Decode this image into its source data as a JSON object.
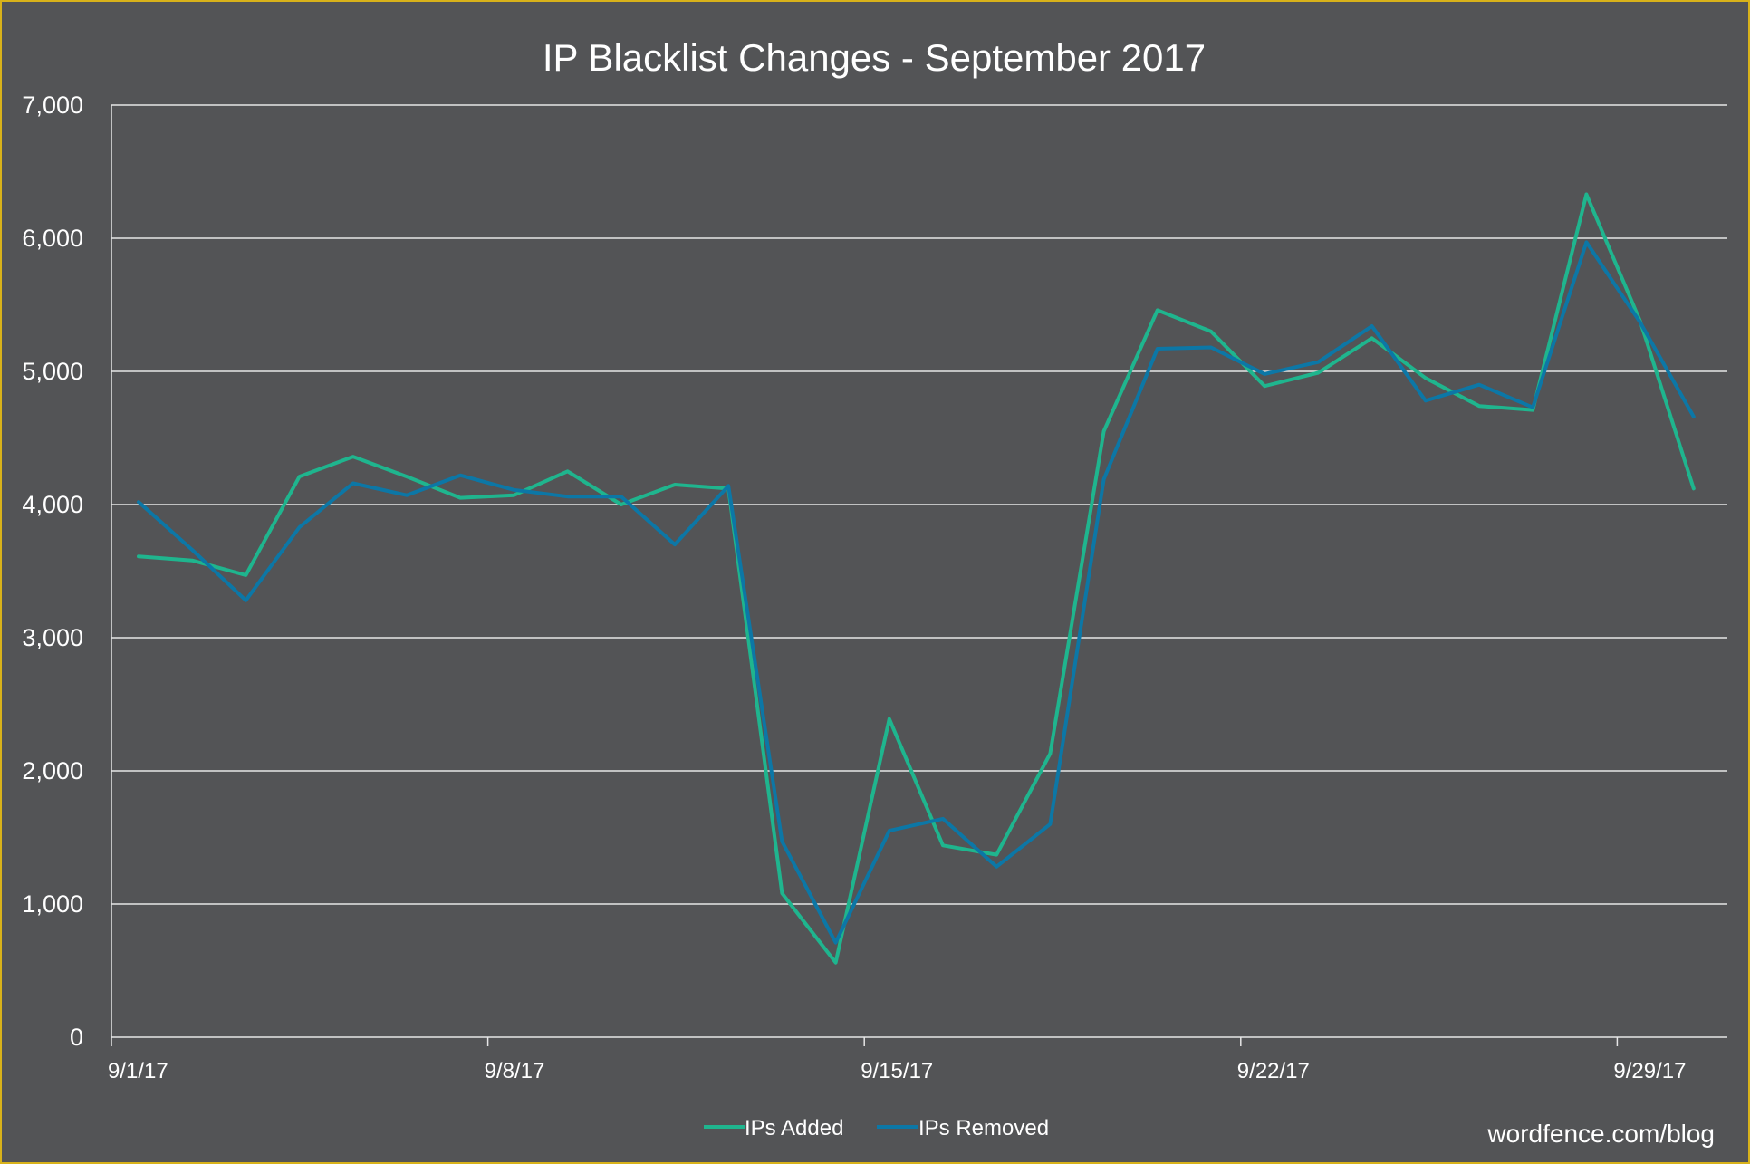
{
  "chart_data": {
    "type": "line",
    "title": "IP Blacklist Changes - September 2017",
    "xlabel": "",
    "ylabel": "",
    "ylim": [
      0,
      7000
    ],
    "y_ticks": [
      "0",
      "1,000",
      "2,000",
      "3,000",
      "4,000",
      "5,000",
      "6,000",
      "7,000"
    ],
    "x_ticks": [
      "9/1/17",
      "9/8/17",
      "9/15/17",
      "9/22/17",
      "9/29/17"
    ],
    "grid": true,
    "legend_placement": "bottom",
    "x": [
      "9/1/17",
      "9/2/17",
      "9/3/17",
      "9/4/17",
      "9/5/17",
      "9/6/17",
      "9/7/17",
      "9/8/17",
      "9/9/17",
      "9/10/17",
      "9/11/17",
      "9/12/17",
      "9/13/17",
      "9/14/17",
      "9/15/17",
      "9/16/17",
      "9/17/17",
      "9/18/17",
      "9/19/17",
      "9/20/17",
      "9/21/17",
      "9/22/17",
      "9/23/17",
      "9/24/17",
      "9/25/17",
      "9/26/17",
      "9/27/17",
      "9/28/17",
      "9/29/17",
      "9/30/17"
    ],
    "series": [
      {
        "name": "IPs Added",
        "color": "#1fb58e",
        "values": [
          3610,
          3580,
          3470,
          4210,
          4360,
          4210,
          4050,
          4070,
          4250,
          4000,
          4150,
          4120,
          1080,
          560,
          2390,
          1440,
          1370,
          2130,
          4550,
          5460,
          5300,
          4890,
          4990,
          5250,
          4950,
          4740,
          4710,
          6330,
          5380,
          4120
        ]
      },
      {
        "name": "IPs Removed",
        "color": "#0c77a6",
        "values": [
          4020,
          3660,
          3280,
          3830,
          4160,
          4070,
          4220,
          4110,
          4060,
          4060,
          3700,
          4140,
          1470,
          710,
          1550,
          1640,
          1280,
          1600,
          4190,
          5170,
          5180,
          4980,
          5070,
          5340,
          4780,
          4900,
          4730,
          5970,
          5370,
          4660
        ]
      }
    ]
  },
  "watermark": "wordfence.com/blog"
}
